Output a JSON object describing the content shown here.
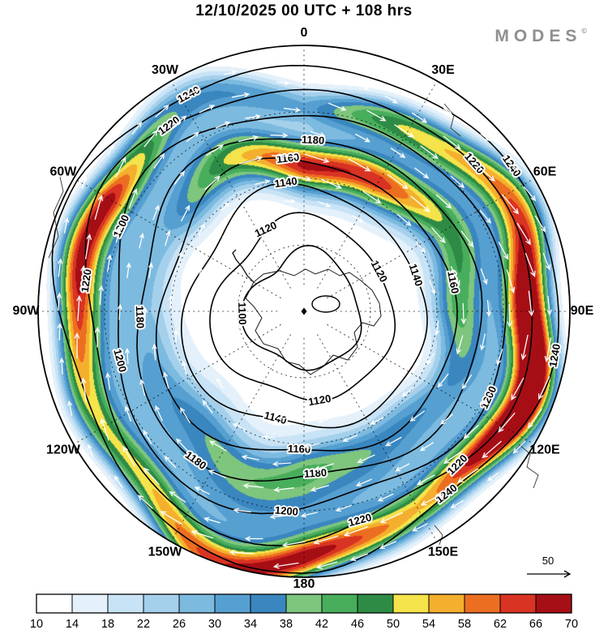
{
  "header": {
    "title": "12/10/2025  00 UTC  + 108 hrs",
    "logo": "MODES",
    "logo_mark": "©"
  },
  "map": {
    "longitude_labels": [
      {
        "lon": 0,
        "label": "0"
      },
      {
        "lon": 30,
        "label": "30E"
      },
      {
        "lon": 60,
        "label": "60E"
      },
      {
        "lon": 90,
        "label": "90E"
      },
      {
        "lon": 120,
        "label": "120E"
      },
      {
        "lon": 150,
        "label": "150E"
      },
      {
        "lon": 180,
        "label": "180"
      },
      {
        "lon": 210,
        "label": "150W"
      },
      {
        "lon": 240,
        "label": "120W"
      },
      {
        "lon": 270,
        "label": "90W"
      },
      {
        "lon": 300,
        "label": "60W"
      },
      {
        "lon": 330,
        "label": "30W"
      }
    ],
    "pole_marker": "diamond",
    "reference_arrow_label": "50"
  },
  "chart_data": {
    "type": "heatmap",
    "title": "12/10/2025 00 UTC + 108 hrs",
    "projection": "south-polar-stereographic",
    "legend_position": "bottom",
    "colorbar": {
      "ticks": [
        10,
        14,
        18,
        22,
        26,
        30,
        34,
        38,
        42,
        46,
        50,
        54,
        58,
        62,
        66,
        70
      ],
      "colors": [
        "#FFFFFF",
        "#E4F1FA",
        "#C9E3F6",
        "#A5D0EC",
        "#7CBADF",
        "#569FD1",
        "#3A86BF",
        "#7EC57E",
        "#48AE5C",
        "#2E8B45",
        "#F4E34A",
        "#F4AF2E",
        "#EC6E20",
        "#D93323",
        "#A60E15"
      ]
    },
    "contours": {
      "values": [
        1100,
        1120,
        1140,
        1160,
        1180,
        1200,
        1220,
        1240
      ]
    },
    "longitude_ring": [
      "0",
      "30E",
      "60E",
      "90E",
      "120E",
      "150E",
      "180",
      "150W",
      "120W",
      "90W",
      "60W",
      "30W"
    ],
    "wind_reference": 50
  }
}
